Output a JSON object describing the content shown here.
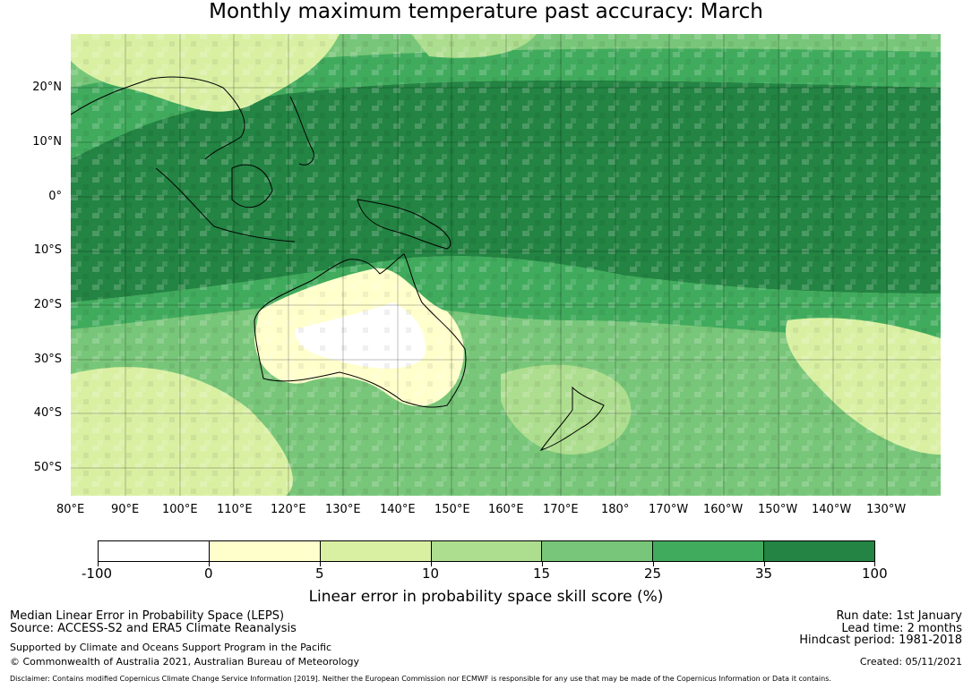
{
  "title": "Monthly maximum temperature past accuracy: March",
  "map": {
    "lat_labels": [
      "20°N",
      "10°N",
      "0°",
      "10°S",
      "20°S",
      "30°S",
      "40°S",
      "50°S"
    ],
    "lon_labels": [
      "80°E",
      "90°E",
      "100°E",
      "110°E",
      "120°E",
      "130°E",
      "140°E",
      "150°E",
      "160°E",
      "170°E",
      "180°",
      "170°W",
      "160°W",
      "150°W",
      "140°W",
      "130°W"
    ],
    "layer": "LEPS skill score (%)",
    "region": "Indo-Pacific, 80°E–125°W, 30°N–55°S"
  },
  "colorbar": {
    "ticks": [
      "-100",
      "0",
      "5",
      "10",
      "15",
      "25",
      "35",
      "100"
    ],
    "colors": [
      "#ffffff",
      "#ffffcc",
      "#d9f0a3",
      "#addd8e",
      "#78c679",
      "#41ab5d",
      "#238443"
    ],
    "label": "Linear error in probability space skill score (%)"
  },
  "footer": {
    "left_line1": "Median Linear Error in Probability Space (LEPS)",
    "left_line2": "Source: ACCESS-S2 and ERA5 Climate Reanalysis",
    "left_line3": "Supported by Climate and Oceans Support Program in the Pacific",
    "left_line4": "© Commonwealth of Australia 2021, Australian Bureau of Meteorology",
    "right_line1": "Run date: 1st January",
    "right_line2": "Lead time: 2 months",
    "right_line3": "Hindcast period: 1981-2018",
    "right_line4": "Created: 05/11/2021",
    "disclaimer": "Disclaimer: Contains modified Copernicus Climate Change Service Information [2019]. Neither the European Commission nor ECMWF is responsible for any use that may be made of the Copernicus Information or Data it contains."
  }
}
